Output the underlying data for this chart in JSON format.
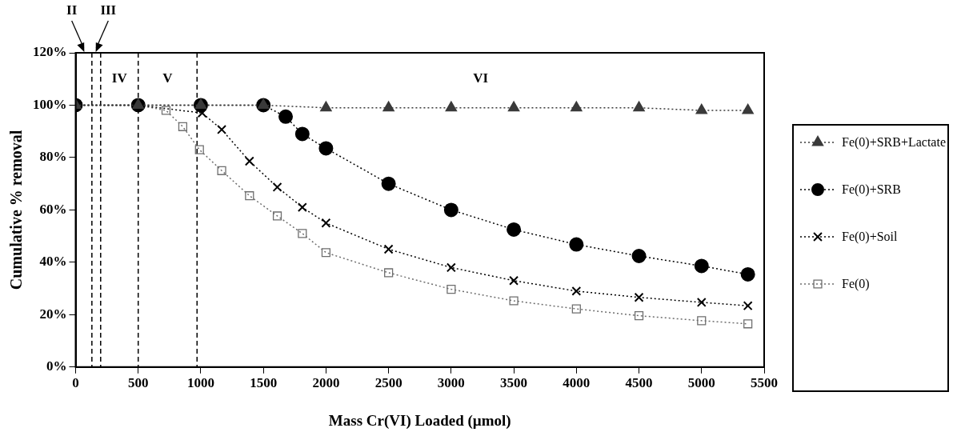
{
  "chart_data": {
    "type": "line",
    "xlabel": "Mass Cr(VI) Loaded (µmol)",
    "ylabel": "Cumulative % removal",
    "xlim": [
      0,
      5500
    ],
    "xticks": [
      0,
      500,
      1000,
      1500,
      2000,
      2500,
      3000,
      3500,
      4000,
      4500,
      5000,
      5500
    ],
    "ylim": [
      0,
      120
    ],
    "yticks": [
      {
        "value": 0,
        "label": "0%"
      },
      {
        "value": 20,
        "label": "20%"
      },
      {
        "value": 40,
        "label": "40%"
      },
      {
        "value": 60,
        "label": "60%"
      },
      {
        "value": 80,
        "label": "80%"
      },
      {
        "value": 100,
        "label": "100%"
      },
      {
        "value": 120,
        "label": "120%"
      }
    ],
    "grid": false,
    "legend": "right",
    "line_style": "dotted",
    "ref_lines": [
      {
        "axis": "x",
        "value": 130,
        "line_style": "dashed"
      },
      {
        "axis": "x",
        "value": 200,
        "line_style": "dashed"
      },
      {
        "axis": "x",
        "value": 500,
        "line_style": "dashed"
      },
      {
        "axis": "x",
        "value": 970,
        "line_style": "dashed"
      }
    ],
    "annotations": [
      "II",
      "III",
      "IV",
      "V",
      "VI"
    ],
    "series": [
      {
        "name": "Fe(0)+SRB+Lactate",
        "color": "#3a3a3a",
        "marker": "triangle",
        "x": [
          0,
          500,
          1000,
          1500,
          2000,
          2500,
          3000,
          3500,
          4000,
          4500,
          5000,
          5370
        ],
        "values": [
          100,
          100,
          100,
          100,
          99,
          99,
          99,
          99,
          99,
          99,
          98,
          98
        ]
      },
      {
        "name": "Fe(0)+SRB",
        "color": "#000000",
        "marker": "circle",
        "x": [
          0,
          500,
          1000,
          1500,
          1678,
          1811,
          2000,
          2500,
          3000,
          3500,
          4000,
          4500,
          5000,
          5370
        ],
        "values": [
          100,
          100,
          100,
          100,
          95.6,
          89,
          83.5,
          70,
          60,
          52.5,
          46.8,
          42.4,
          38.6,
          35.4
        ]
      },
      {
        "name": "Fe(0)+Soil",
        "color": "#000000",
        "marker": "cross",
        "x": [
          0,
          500,
          1011,
          1167,
          1389,
          1611,
          1811,
          2000,
          2500,
          3000,
          3500,
          4000,
          4500,
          5000,
          5370
        ],
        "values": [
          100,
          100,
          97,
          90.7,
          78.6,
          68.7,
          61,
          55,
          45,
          38,
          33,
          29,
          26.6,
          24.7,
          23.4
        ]
      },
      {
        "name": "Fe(0)",
        "color": "#6e6e6e",
        "marker": "square",
        "x": [
          0,
          500,
          722,
          856,
          989,
          1167,
          1389,
          1611,
          1811,
          2000,
          2500,
          3000,
          3500,
          4000,
          4500,
          5000,
          5370
        ],
        "values": [
          100,
          100,
          98,
          91.8,
          83,
          75,
          65.4,
          57.7,
          51,
          43.7,
          36,
          29.7,
          25.3,
          22.2,
          19.6,
          17.7,
          16.5
        ]
      }
    ]
  }
}
